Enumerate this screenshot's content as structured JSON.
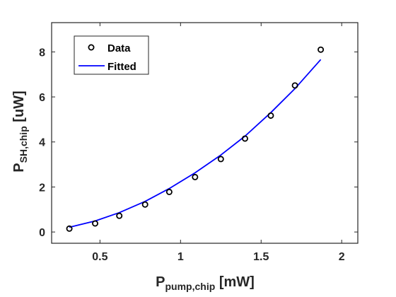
{
  "chart_data": {
    "type": "scatter",
    "title": "",
    "xlabel": {
      "main": "P",
      "sub": "pump,chip",
      "unit": " [mW]"
    },
    "ylabel": {
      "main": "P",
      "sub": "SH,chip",
      "unit": " [uW]"
    },
    "xlim": [
      0.2,
      2.1
    ],
    "ylim": [
      -0.5,
      9.3
    ],
    "x_ticks": [
      0.5,
      1,
      1.5,
      2
    ],
    "x_tick_labels": [
      "0.5",
      "1",
      "1.5",
      "2"
    ],
    "y_ticks": [
      0,
      2,
      4,
      6,
      8
    ],
    "y_tick_labels": [
      "0",
      "2",
      "4",
      "6",
      "8"
    ],
    "grid": false,
    "legend_position": "top-left",
    "series": [
      {
        "name": "Data",
        "style": "markers",
        "color": "#000000",
        "x": [
          0.31,
          0.47,
          0.62,
          0.78,
          0.93,
          1.09,
          1.25,
          1.4,
          1.56,
          1.71,
          1.87
        ],
        "y": [
          0.15,
          0.38,
          0.72,
          1.22,
          1.78,
          2.44,
          3.24,
          4.15,
          5.17,
          6.51,
          8.1
        ]
      },
      {
        "name": "Fitted",
        "style": "line",
        "color": "#0000ff",
        "x": [
          0.31,
          0.47,
          0.62,
          0.78,
          0.93,
          1.09,
          1.25,
          1.4,
          1.56,
          1.71,
          1.87
        ],
        "y": [
          0.21,
          0.49,
          0.86,
          1.36,
          1.93,
          2.63,
          3.42,
          4.26,
          5.3,
          6.37,
          7.66
        ]
      }
    ]
  }
}
